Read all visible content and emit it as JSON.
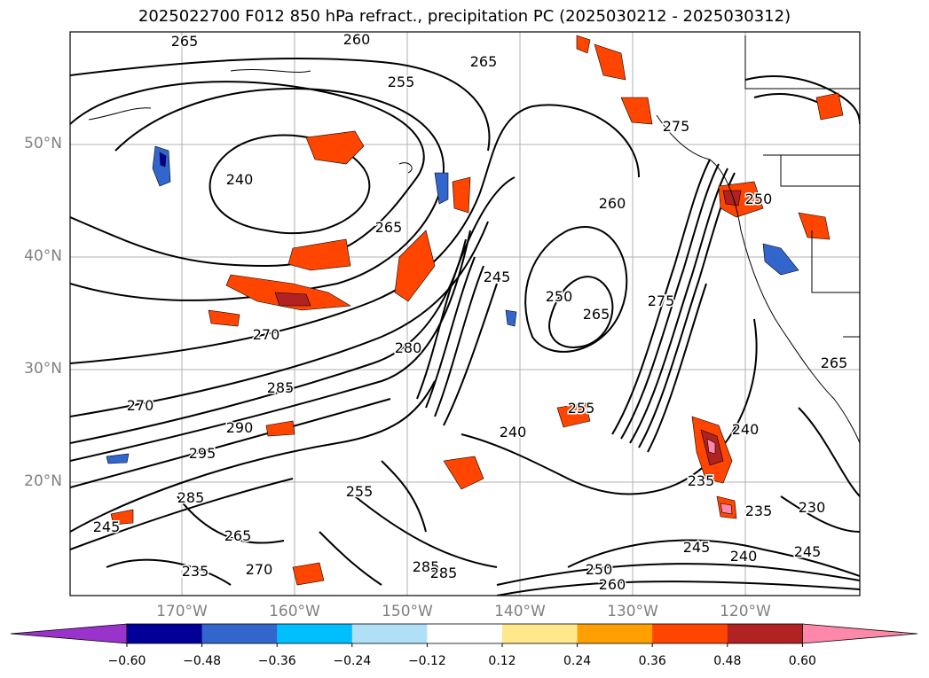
{
  "title": "2025022700 F012 850 hPa refract., precipitation PC (2025030212 - 2025030312)",
  "map": {
    "lat_labels": [
      "50°N",
      "40°N",
      "30°N",
      "20°N"
    ],
    "lon_labels": [
      "170°W",
      "160°W",
      "150°W",
      "140°W",
      "130°W",
      "120°W"
    ],
    "contour_labels": [
      "265",
      "260",
      "265",
      "255",
      "265",
      "275",
      "270",
      "245",
      "260",
      "250",
      "265",
      "275",
      "270",
      "285",
      "290",
      "295",
      "285",
      "265",
      "240",
      "235",
      "240",
      "235",
      "230",
      "245",
      "240",
      "245",
      "255",
      "285",
      "270",
      "250",
      "240",
      "235",
      "245",
      "255",
      "250",
      "260",
      "280",
      "285",
      "265"
    ]
  },
  "colorbar": {
    "tick_labels": [
      "−0.60",
      "−0.48",
      "−0.36",
      "−0.24",
      "−0.12",
      "0.12",
      "0.24",
      "0.36",
      "0.48",
      "0.60"
    ],
    "colors": [
      "#9933cc",
      "#000099",
      "#3366cc",
      "#00bfff",
      "#b0e0f8",
      "#ffffff",
      "#ffe88a",
      "#ffa000",
      "#ff4500",
      "#b22222",
      "#ff88aa"
    ],
    "extend": "both"
  }
}
